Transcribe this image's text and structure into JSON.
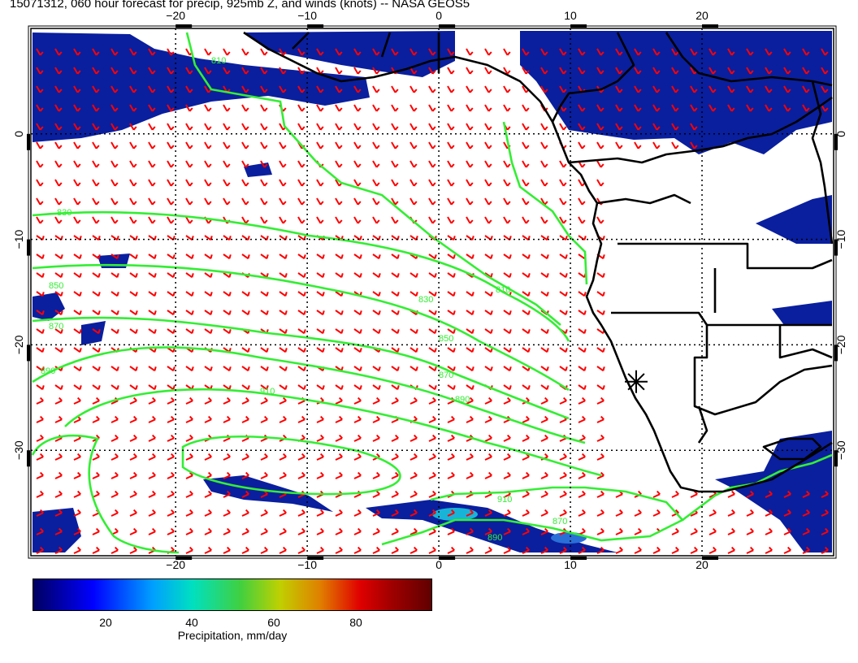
{
  "title": "15071312, 060 hour forecast for precip, 925mb Z, and winds (knots) -- NASA GEOS5",
  "map": {
    "lon_range": [
      -31,
      30
    ],
    "lat_range": [
      -40,
      10
    ],
    "lon_ticks": [
      -20,
      -10,
      0,
      10,
      20
    ],
    "lat_ticks": [
      0,
      -10,
      -20,
      -30
    ],
    "lon_tick_labels": [
      "−20",
      "−10",
      "0",
      "10",
      "20"
    ],
    "lat_tick_labels": [
      "0",
      "−10",
      "−20",
      "−30"
    ],
    "contour_labels": [
      "810",
      "830",
      "850",
      "870",
      "890",
      "910",
      "810",
      "830",
      "850",
      "870",
      "890",
      "910",
      "870",
      "890"
    ],
    "marker": {
      "lon": 15,
      "lat": -23.5,
      "icon": "asterisk"
    },
    "colors": {
      "precip": "#0a1f9e",
      "contour": "#33ee33",
      "wind": "#ff0000",
      "coast": "#000000"
    }
  },
  "colorbar": {
    "label": "Precipitation, mm/day",
    "ticks": [
      "20",
      "40",
      "60",
      "80"
    ],
    "range": [
      0,
      100
    ]
  }
}
